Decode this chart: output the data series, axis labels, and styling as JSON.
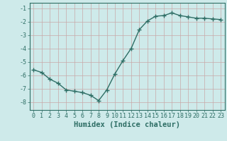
{
  "x": [
    0,
    1,
    2,
    3,
    4,
    5,
    6,
    7,
    8,
    9,
    10,
    11,
    12,
    13,
    14,
    15,
    16,
    17,
    18,
    19,
    20,
    21,
    22,
    23
  ],
  "y": [
    -5.6,
    -5.8,
    -6.3,
    -6.6,
    -7.1,
    -7.2,
    -7.3,
    -7.5,
    -7.9,
    -7.1,
    -5.9,
    -4.9,
    -4.0,
    -2.6,
    -1.95,
    -1.6,
    -1.55,
    -1.35,
    -1.55,
    -1.65,
    -1.75,
    -1.75,
    -1.8,
    -1.85
  ],
  "line_color": "#2e6e65",
  "marker": "+",
  "marker_size": 4,
  "marker_lw": 1.0,
  "bg_color": "#ceeaea",
  "grid_color": "#c8a8a8",
  "xlabel": "Humidex (Indice chaleur)",
  "xlim": [
    -0.5,
    23.5
  ],
  "ylim": [
    -8.6,
    -0.6
  ],
  "yticks": [
    -1,
    -2,
    -3,
    -4,
    -5,
    -6,
    -7,
    -8
  ],
  "xticks": [
    0,
    1,
    2,
    3,
    4,
    5,
    6,
    7,
    8,
    9,
    10,
    11,
    12,
    13,
    14,
    15,
    16,
    17,
    18,
    19,
    20,
    21,
    22,
    23
  ],
  "tick_label_color": "#2e6e65",
  "xlabel_color": "#2e6e65",
  "xlabel_fontsize": 7.5,
  "tick_fontsize": 6.0,
  "line_width": 1.0,
  "spine_color": "#2e6e65"
}
